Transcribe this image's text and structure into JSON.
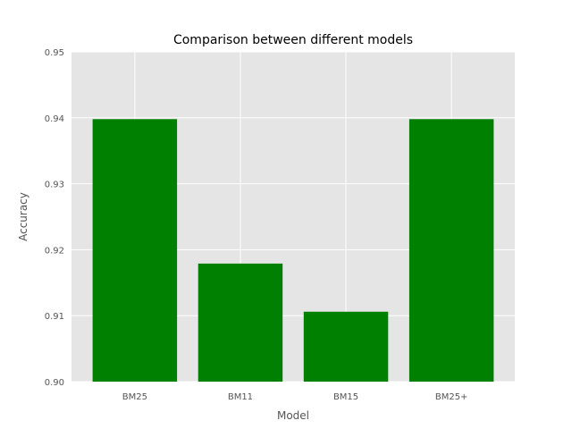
{
  "chart_data": {
    "type": "bar",
    "title": "Comparison between different models",
    "xlabel": "Model",
    "ylabel": "Accuracy",
    "categories": [
      "BM25",
      "BM11",
      "BM15",
      "BM25+"
    ],
    "values": [
      0.9398,
      0.9179,
      0.9106,
      0.9398
    ],
    "ylim": [
      0.9,
      0.95
    ],
    "yticks": [
      "0.90",
      "0.91",
      "0.92",
      "0.93",
      "0.94",
      "0.95"
    ],
    "grid": true,
    "style": "ggplot",
    "colors": {
      "bar": "#008000",
      "plot_background": "#E5E5E5",
      "grid": "#FFFFFF",
      "text": "#555555",
      "title": "#000000"
    }
  }
}
